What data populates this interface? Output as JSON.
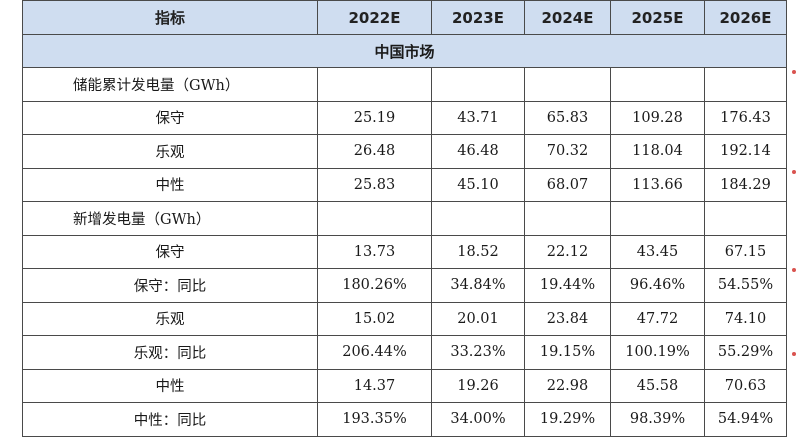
{
  "header": {
    "indicator_label": "指标",
    "years": [
      "2022E",
      "2023E",
      "2024E",
      "2025E",
      "2026E"
    ]
  },
  "section_title": "中国市场",
  "groups": [
    {
      "title": "储能累计发电量（GWh）",
      "rows": [
        {
          "label": "保守",
          "values": [
            "25.19",
            "43.71",
            "65.83",
            "109.28",
            "176.43"
          ]
        },
        {
          "label": "乐观",
          "values": [
            "26.48",
            "46.48",
            "70.32",
            "118.04",
            "192.14"
          ]
        },
        {
          "label": "中性",
          "values": [
            "25.83",
            "45.10",
            "68.07",
            "113.66",
            "184.29"
          ]
        }
      ]
    },
    {
      "title": "新增发电量（GWh）",
      "rows": [
        {
          "label": "保守",
          "values": [
            "13.73",
            "18.52",
            "22.12",
            "43.45",
            "67.15"
          ]
        },
        {
          "label": "保守：同比",
          "values": [
            "180.26%",
            "34.84%",
            "19.44%",
            "96.46%",
            "54.55%"
          ]
        },
        {
          "label": "乐观",
          "values": [
            "15.02",
            "20.01",
            "23.84",
            "47.72",
            "74.10"
          ]
        },
        {
          "label": "乐观：同比",
          "values": [
            "206.44%",
            "33.23%",
            "19.15%",
            "100.19%",
            "55.29%"
          ]
        },
        {
          "label": "中性",
          "values": [
            "14.37",
            "19.26",
            "22.98",
            "45.58",
            "70.63"
          ]
        },
        {
          "label": "中性：同比",
          "values": [
            "193.35%",
            "34.00%",
            "19.29%",
            "98.39%",
            "54.94%"
          ]
        }
      ]
    }
  ],
  "colors": {
    "header_bg": "#cfddf0",
    "border": "#4a4a4a",
    "side_mark": "#d9534f"
  }
}
